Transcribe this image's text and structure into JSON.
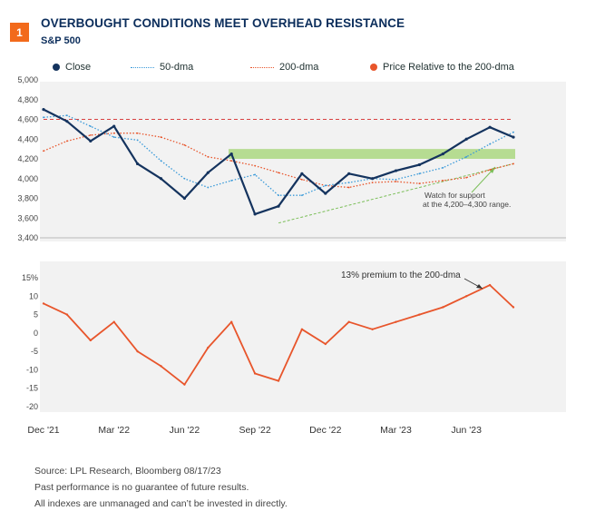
{
  "header": {
    "badge": "1",
    "title": "OVERBOUGHT CONDITIONS MEET OVERHEAD RESISTANCE",
    "subtitle": "S&P 500"
  },
  "legend": {
    "close": "Close",
    "dma50": "50-dma",
    "dma200": "200-dma",
    "relative": "Price Relative to the 200-dma"
  },
  "colors": {
    "close": "#14335e",
    "dma50": "#3a9ad9",
    "dma200": "#e8552b",
    "relative": "#e8552b",
    "support_band": "#b6dc92",
    "resistance_line": "#d84040",
    "trendline": "#7cbf5a",
    "badge": "#f26a1b"
  },
  "annotations": {
    "support": [
      "Watch for support",
      "at the 4,200–4,300 range."
    ],
    "premium": "13% premium to the 200-dma"
  },
  "footer": {
    "source": "Source: LPL Research, Bloomberg 08/17/23",
    "line2": "Past performance is no guarantee of future results.",
    "line3": "All indexes are unmanaged and can’t be invested in directly."
  },
  "chart_data": [
    {
      "type": "line",
      "title": "S&P 500",
      "x": [
        "Dec '21",
        "Jan '22",
        "Feb '22",
        "Mar '22",
        "Apr '22",
        "May '22",
        "Jun '22",
        "Jul '22",
        "Aug '22",
        "Sep '22",
        "Oct '22",
        "Nov '22",
        "Dec '22",
        "Jan '23",
        "Feb '23",
        "Mar '23",
        "Apr '23",
        "May '23",
        "Jun '23",
        "Jul '23",
        "Aug '23"
      ],
      "x_ticks": [
        "Dec '21",
        "Mar '22",
        "Jun '22",
        "Sep '22",
        "Dec '22",
        "Mar '23",
        "Jun '23"
      ],
      "series": [
        {
          "name": "Close",
          "values": [
            4700,
            4580,
            4380,
            4530,
            4150,
            4000,
            3800,
            4060,
            4250,
            3640,
            3720,
            4050,
            3850,
            4050,
            4000,
            4080,
            4140,
            4250,
            4400,
            4520,
            4420
          ]
        },
        {
          "name": "50-dma",
          "values": [
            4620,
            4640,
            4530,
            4420,
            4390,
            4180,
            4000,
            3910,
            3980,
            4040,
            3830,
            3830,
            3930,
            3960,
            4000,
            3990,
            4050,
            4110,
            4220,
            4350,
            4470
          ]
        },
        {
          "name": "200-dma",
          "values": [
            4280,
            4380,
            4440,
            4460,
            4460,
            4420,
            4340,
            4220,
            4180,
            4130,
            4060,
            3990,
            3930,
            3910,
            3960,
            3970,
            3950,
            3980,
            4010,
            4090,
            4150
          ]
        }
      ],
      "yticks": [
        3400,
        3600,
        3800,
        4000,
        4200,
        4400,
        4600,
        4800,
        5000
      ],
      "ytick_labels": [
        "3,400",
        "3,600",
        "3,800",
        "4,000",
        "4,200",
        "4,400",
        "4,600",
        "4,800",
        "5,000"
      ],
      "ylim": [
        3400,
        5000
      ],
      "resistance_level": 4600,
      "support_band": [
        4200,
        4300
      ],
      "trendline": {
        "start": {
          "x": "Oct '22",
          "y": 3550
        },
        "end": {
          "x": "Aug '23",
          "y": 4150
        }
      },
      "grid": false
    },
    {
      "type": "line",
      "series": [
        {
          "name": "Price Relative to the 200-dma",
          "values": [
            8,
            5,
            -2,
            3,
            -5,
            -9,
            -14,
            -4,
            3,
            -11,
            -13,
            1,
            -3,
            3,
            1,
            3,
            5,
            7,
            10,
            13,
            7
          ]
        }
      ],
      "x": [
        "Dec '21",
        "Jan '22",
        "Feb '22",
        "Mar '22",
        "Apr '22",
        "May '22",
        "Jun '22",
        "Jul '22",
        "Aug '22",
        "Sep '22",
        "Oct '22",
        "Nov '22",
        "Dec '22",
        "Jan '23",
        "Feb '23",
        "Mar '23",
        "Apr '23",
        "May '23",
        "Jun '23",
        "Jul '23",
        "Aug '23"
      ],
      "yticks": [
        -20,
        -15,
        -10,
        -5,
        0,
        5,
        10,
        15
      ],
      "ytick_labels": [
        "-20",
        "-15",
        "-10",
        "-5",
        "0",
        "5",
        "10",
        "15%"
      ],
      "ylim": [
        -20,
        15
      ],
      "grid": false
    }
  ]
}
